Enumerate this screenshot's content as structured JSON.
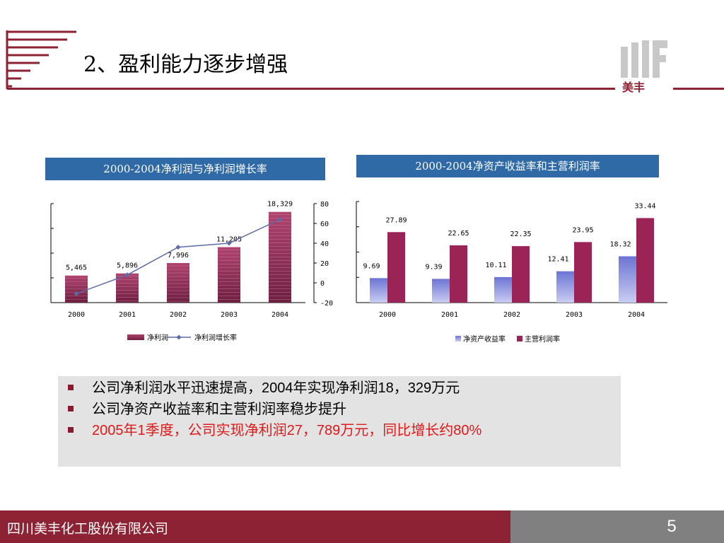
{
  "header": {
    "title": "2、盈利能力逐步增强",
    "logo_text": "美丰"
  },
  "colors": {
    "brand": "#8c2233",
    "chart_title_bg": "#2f6aa7",
    "net_profit_bar": "#8f2a55",
    "growth_line": "#5d6aa8",
    "roe_bar": "#7078cf",
    "margin_bar": "#9b2457",
    "footer_gray": "#808080",
    "bullet_box": "#e3e3e3"
  },
  "chart_data": [
    {
      "type": "bar",
      "title": "2000-2004净利润与净利润增长率",
      "categories": [
        "2000",
        "2001",
        "2002",
        "2003",
        "2004"
      ],
      "series": [
        {
          "name": "净利润",
          "type": "bar",
          "values": [
            5465,
            5896,
            7996,
            11205,
            18329
          ],
          "labels": [
            "5,465",
            "5,896",
            "7,996",
            "11,205",
            "18,329"
          ]
        },
        {
          "name": "净利润增长率",
          "type": "line",
          "axis": "right",
          "values": [
            -11,
            8,
            36,
            40,
            64
          ]
        }
      ],
      "ylim": [
        0,
        20000
      ],
      "y2lim": [
        -20,
        80
      ],
      "y2ticks": [
        "80",
        "60",
        "40",
        "20",
        "0",
        "-20"
      ],
      "legend_position": "bottom"
    },
    {
      "type": "bar",
      "title": "2000-2004净资产收益率和主营利润率",
      "categories": [
        "2000",
        "2001",
        "2002",
        "2003",
        "2004"
      ],
      "series": [
        {
          "name": "净资产收益率",
          "values": [
            9.69,
            9.39,
            10.11,
            12.41,
            18.32
          ],
          "labels": [
            "9.69",
            "9.39",
            "10.11",
            "12.41",
            "18.32"
          ]
        },
        {
          "name": "主营利润率",
          "values": [
            27.89,
            22.65,
            22.35,
            23.95,
            33.44
          ],
          "labels": [
            "27.89",
            "22.65",
            "22.35",
            "23.95",
            "33.44"
          ]
        }
      ],
      "ylim": [
        0,
        40
      ],
      "legend_position": "bottom"
    }
  ],
  "bullets": [
    {
      "text": "公司净利润水平迅速提高，2004年实现净利润18，329万元"
    },
    {
      "text": "公司净资产收益率和主营利润率稳步提升"
    },
    {
      "text": "2005年1季度，公司实现净利润27，789万元，同比增长约80%"
    }
  ],
  "footer": {
    "company": "四川美丰化工股份有限公司",
    "page_number": "5"
  }
}
